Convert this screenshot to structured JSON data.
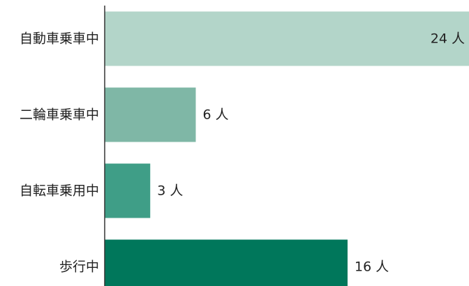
{
  "chart_data": {
    "type": "bar",
    "orientation": "horizontal",
    "categories": [
      "自動車乗車中",
      "二輪車乗車中",
      "自転車乗用中",
      "歩行中"
    ],
    "values": [
      24,
      6,
      3,
      16
    ],
    "value_labels": [
      "24 人",
      "6 人",
      "3 人",
      "16 人"
    ],
    "colors": [
      "#b3d5c9",
      "#7fb7a6",
      "#3f9e87",
      "#00775b"
    ],
    "title": "",
    "xlabel": "",
    "ylabel": "",
    "xlim": [
      0,
      24
    ],
    "grid": false,
    "legend": "none"
  }
}
